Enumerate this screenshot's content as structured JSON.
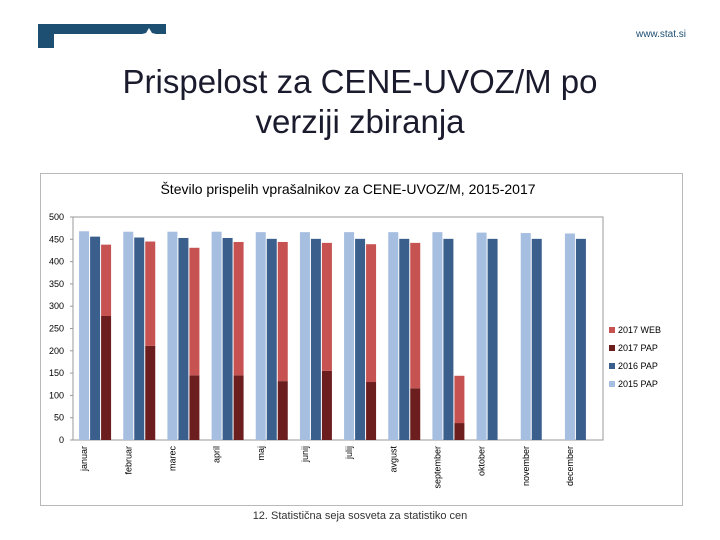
{
  "header": {
    "site_url": "www.stat.si",
    "title_line1": "Prispelost za CENE-UVOZ/M po",
    "title_line2": "verziji zbiranja"
  },
  "footer": {
    "text": "12. Statistična seja sosveta za statistiko cen"
  },
  "colors": {
    "s2015": "#a6bee0",
    "s2016": "#3b5f8c",
    "s2017web": "#c65252",
    "s2017pap": "#6c1e1e",
    "brand": "#1d4f73"
  },
  "chart_data": {
    "type": "bar",
    "title": "Število prispelih vprašalnikov za CENE-UVOZ/M, 2015-2017",
    "xlabel": "",
    "ylabel": "",
    "ylim": [
      0,
      500
    ],
    "yticks": [
      0,
      50,
      100,
      150,
      200,
      250,
      300,
      350,
      400,
      450,
      500
    ],
    "legend_position": "right",
    "categories": [
      "januar",
      "februar",
      "marec",
      "april",
      "maj",
      "junij",
      "julij",
      "avgust",
      "september",
      "oktober",
      "november",
      "december"
    ],
    "series": [
      {
        "name": "2015 PAP",
        "color_key": "s2015",
        "values": [
          468,
          467,
          467,
          467,
          466,
          466,
          466,
          466,
          466,
          465,
          464,
          463
        ]
      },
      {
        "name": "2016 PAP",
        "color_key": "s2016",
        "values": [
          456,
          454,
          453,
          453,
          451,
          451,
          451,
          451,
          451,
          451,
          451,
          451
        ]
      },
      {
        "name": "2017 PAP",
        "color_key": "s2017pap",
        "values": [
          278,
          211,
          145,
          145,
          132,
          155,
          130,
          116,
          38,
          null,
          null,
          null
        ]
      },
      {
        "name": "2017 WEB",
        "color_key": "s2017web",
        "values": [
          160,
          234,
          286,
          299,
          312,
          287,
          309,
          326,
          106,
          null,
          null,
          null
        ]
      }
    ],
    "legend_order": [
      "2017 WEB",
      "2017 PAP",
      "2016 PAP",
      "2015 PAP"
    ]
  }
}
